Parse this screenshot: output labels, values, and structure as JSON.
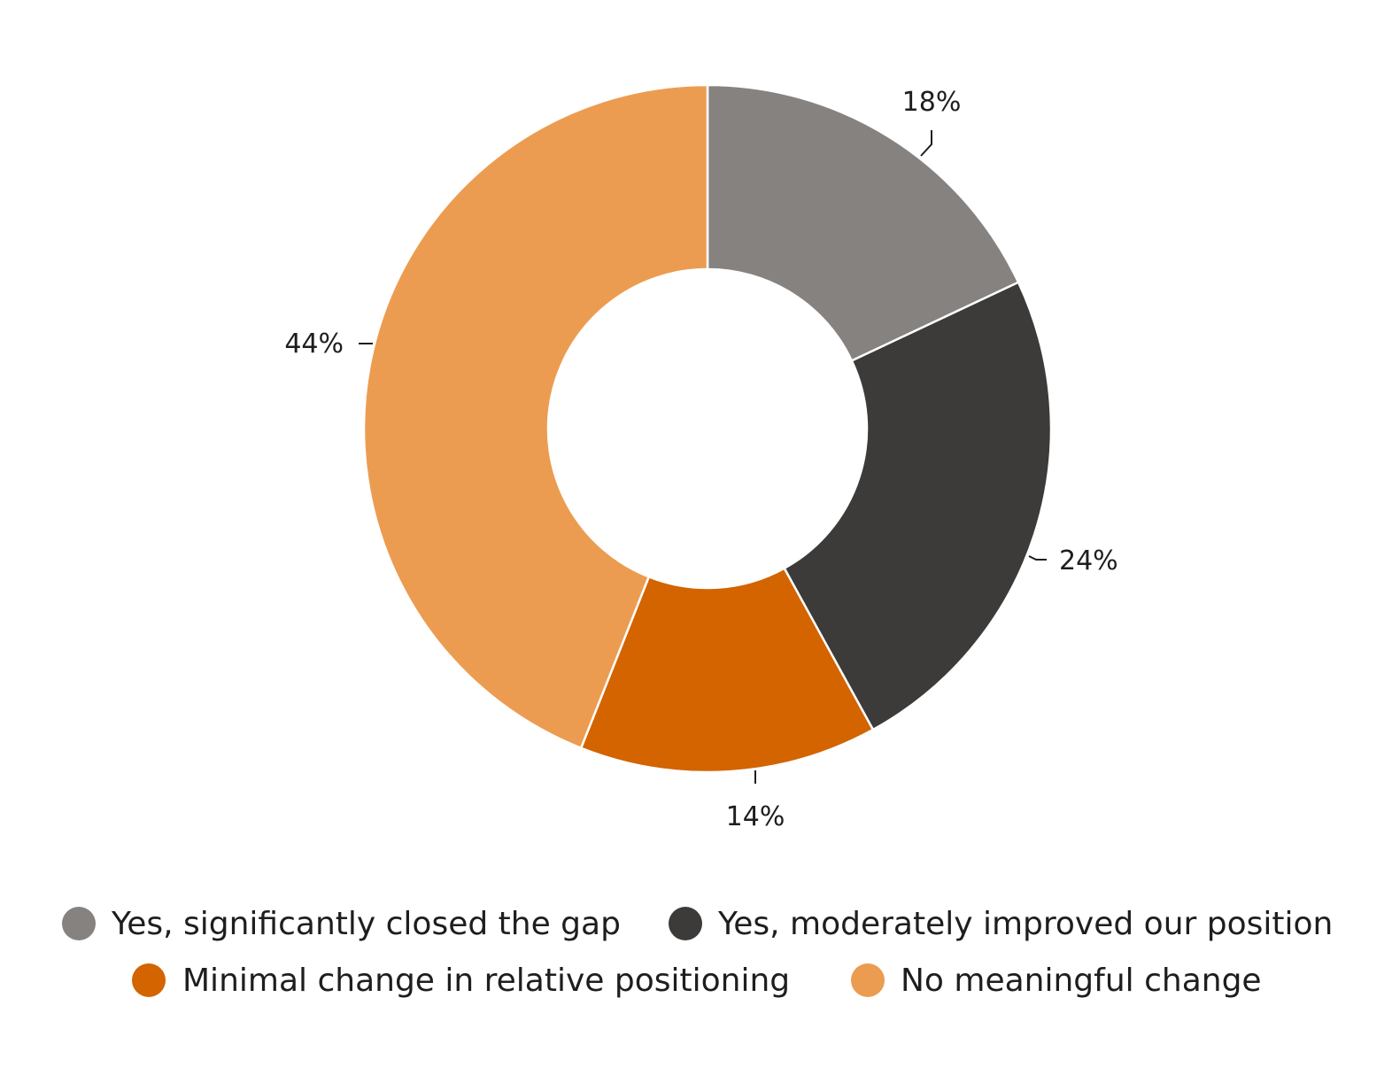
{
  "chart_data": {
    "type": "pie",
    "variant": "donut",
    "title": "",
    "start_angle": "12 o'clock",
    "direction": "clockwise",
    "slices": [
      {
        "name": "Yes, significantly closed the gap",
        "value": 18,
        "label": "18%",
        "color": "#858280"
      },
      {
        "name": "Yes, moderately improved our position",
        "value": 24,
        "label": "24%",
        "color": "#3c3b3a"
      },
      {
        "name": "Minimal change in relative positioning",
        "value": 14,
        "label": "14%",
        "color": "#d36400"
      },
      {
        "name": "No meaningful change",
        "value": 44,
        "label": "44%",
        "color": "#ec9c50"
      }
    ],
    "legend_position": "bottom"
  }
}
